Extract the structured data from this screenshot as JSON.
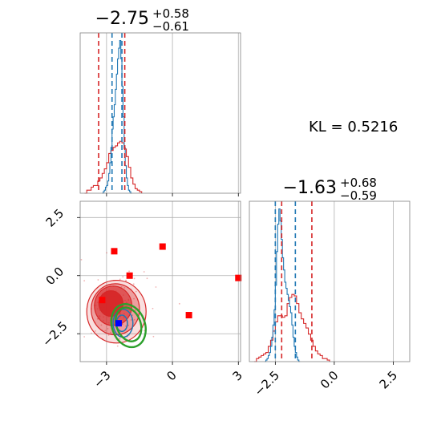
{
  "kl_label": "KL = 0.5216",
  "colors": {
    "red": "#d62728",
    "blue": "#1f77b4",
    "green": "#2ca02c",
    "marker_red": "#ff0000",
    "marker_blue": "#0000ff"
  },
  "chart_data": [
    {
      "type": "histogram",
      "panel": "param1-marginal",
      "title_main": "−2.75",
      "title_sup": "+0.58",
      "title_sub": "−0.61",
      "xlim": [
        -4.2,
        3.1
      ],
      "grid": true,
      "red_quantile_lines": [
        -3.36,
        -2.17
      ],
      "blue_quantile_lines": [
        -2.75,
        -2.3
      ],
      "red_hist": {
        "bin_start": -4.0,
        "bin_width": 0.1,
        "heights": [
          0,
          0.02,
          0.02,
          0.04,
          0.05,
          0.05,
          0.08,
          0.1,
          0.13,
          0.16,
          0.2,
          0.26,
          0.28,
          0.3,
          0.31,
          0.33,
          0.34,
          0.33,
          0.29,
          0.24,
          0.17,
          0.1,
          0.06,
          0.03,
          0.02,
          0.01
        ]
      },
      "blue_hist": {
        "bin_start": -3.2,
        "bin_width": 0.05,
        "heights": [
          0,
          0.01,
          0.02,
          0.04,
          0.05,
          0.08,
          0.13,
          0.2,
          0.3,
          0.42,
          0.5,
          0.58,
          0.68,
          0.78,
          0.88,
          0.95,
          1.0,
          0.88,
          0.7,
          0.5,
          0.3,
          0.18,
          0.1,
          0.05,
          0.02,
          0.01,
          0
        ]
      },
      "ymax": 1.05
    },
    {
      "type": "contour",
      "panel": "joint",
      "xlim": [
        -4.2,
        3.1
      ],
      "ylim": [
        -3.7,
        3.2
      ],
      "xticks": [
        "−3",
        "0",
        "3"
      ],
      "xtick_values": [
        -3,
        0,
        3
      ],
      "yticks": [
        "−2.5",
        "0.0",
        "2.5"
      ],
      "ytick_values": [
        -2.5,
        0,
        2.5
      ],
      "grid": true,
      "red_square_markers": [
        [
          -2.65,
          1.05
        ],
        [
          -1.95,
          0.0
        ],
        [
          -0.45,
          1.25
        ],
        [
          -3.2,
          -1.05
        ],
        [
          0.75,
          -1.7
        ],
        [
          3.0,
          -0.1
        ]
      ],
      "blue_square_markers": [
        [
          -2.45,
          -2.05
        ]
      ],
      "red_contours": [
        {
          "center": [
            -2.8,
            -1.2
          ],
          "rx": 0.55,
          "ry": 0.55,
          "fill_opacity": 0.95
        },
        {
          "center": [
            -2.7,
            -1.3
          ],
          "rx": 0.85,
          "ry": 0.85,
          "fill_opacity": 0.6
        },
        {
          "center": [
            -2.6,
            -1.45
          ],
          "rx": 1.1,
          "ry": 1.1,
          "fill_opacity": 0.35
        },
        {
          "center": [
            -2.55,
            -1.55
          ],
          "rx": 1.35,
          "ry": 1.35,
          "fill_opacity": 0.15
        }
      ],
      "blue_contours": [
        {
          "center": [
            -2.3,
            -2.05
          ],
          "rx": 0.25,
          "ry": 0.35
        },
        {
          "center": [
            -2.25,
            -2.05
          ],
          "rx": 0.45,
          "ry": 0.6
        }
      ],
      "green_contours": [
        {
          "center": [
            -2.0,
            -2.1
          ],
          "rx": 0.55,
          "ry": 0.75
        },
        {
          "center": [
            -2.0,
            -2.15
          ],
          "rx": 0.75,
          "ry": 0.95
        }
      ]
    },
    {
      "type": "histogram",
      "panel": "param2-marginal",
      "title_main": "−1.63",
      "title_sup": "+0.68",
      "title_sub": "−0.59",
      "xlim": [
        -3.6,
        3.2
      ],
      "xticks": [
        "−2.5",
        "0.0",
        "2.5"
      ],
      "xtick_values": [
        -2.5,
        0,
        2.5
      ],
      "grid": true,
      "red_quantile_lines": [
        -2.23,
        -0.95
      ],
      "blue_quantile_lines": [
        -2.5,
        -1.65
      ],
      "red_hist": {
        "bin_start": -3.4,
        "bin_width": 0.1,
        "heights": [
          0,
          0.02,
          0.03,
          0.04,
          0.05,
          0.06,
          0.1,
          0.14,
          0.2,
          0.26,
          0.3,
          0.3,
          0.29,
          0.3,
          0.38,
          0.42,
          0.44,
          0.43,
          0.38,
          0.32,
          0.28,
          0.25,
          0.22,
          0.18,
          0.14,
          0.1,
          0.07,
          0.05,
          0.04,
          0.02,
          0.02,
          0.01
        ]
      },
      "blue_hist": {
        "bin_start": -2.95,
        "bin_width": 0.05,
        "heights": [
          0,
          0.01,
          0.02,
          0.04,
          0.06,
          0.1,
          0.16,
          0.24,
          0.34,
          0.5,
          0.72,
          0.9,
          1.0,
          0.92,
          0.8,
          0.68,
          0.6,
          0.52,
          0.48,
          0.44,
          0.4,
          0.36,
          0.32,
          0.24,
          0.16,
          0.1,
          0.06,
          0.03,
          0.01,
          0
        ]
      },
      "ymax": 1.05
    }
  ]
}
